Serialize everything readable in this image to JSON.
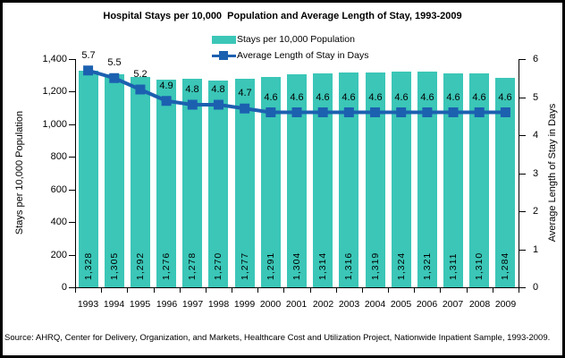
{
  "title": "Hospital Stays per 10,000  Population and Average Length of Stay, 1993-2009",
  "legend": {
    "items": [
      {
        "label": "Stays per 10,000 Population",
        "swatch": "teal-bar-swatch"
      },
      {
        "label": "Average Length of Stay in Days",
        "swatch": "blue-line-marker-swatch"
      }
    ]
  },
  "source": "Source: AHRQ, Center for Delivery, Organization, and Markets, Healthcare Cost and Utilization Project, Nationwide Inpatient Sample, 1993-2009.",
  "colors": {
    "bar": "#3BC6B7",
    "line": "#1C60B0",
    "text": "#000000",
    "background": "#FFFFFF",
    "border": "#000000"
  },
  "chart_data": {
    "type": "bar",
    "subtype": "combo bar + line, dual axis",
    "title": "Hospital Stays per 10,000  Population and Average Length of Stay, 1993-2009",
    "categories": [
      "1993",
      "1994",
      "1995",
      "1996",
      "1997",
      "1998",
      "1999",
      "2000",
      "2001",
      "2002",
      "2003",
      "2004",
      "2005",
      "2006",
      "2007",
      "2008",
      "2009"
    ],
    "series": [
      {
        "name": "Stays per 10,000 Population",
        "type": "bar",
        "axis": "left",
        "values": [
          1328,
          1305,
          1292,
          1276,
          1278,
          1270,
          1277,
          1291,
          1304,
          1314,
          1316,
          1319,
          1324,
          1321,
          1311,
          1310,
          1284
        ],
        "value_labels": [
          "1,328",
          "1,305",
          "1,292",
          "1,276",
          "1,278",
          "1,270",
          "1,277",
          "1,291",
          "1,304",
          "1,314",
          "1,316",
          "1,319",
          "1,324",
          "1,321",
          "1,311",
          "1,310",
          "1,284"
        ]
      },
      {
        "name": "Average Length of Stay in Days",
        "type": "line",
        "axis": "right",
        "values": [
          5.7,
          5.5,
          5.2,
          4.9,
          4.8,
          4.8,
          4.7,
          4.6,
          4.6,
          4.6,
          4.6,
          4.6,
          4.6,
          4.6,
          4.6,
          4.6,
          4.6
        ],
        "value_labels": [
          "5.7",
          "5.5",
          "5.2",
          "4.9",
          "4.8",
          "4.8",
          "4.7",
          "4.6",
          "4.6",
          "4.6",
          "4.6",
          "4.6",
          "4.6",
          "4.6",
          "4.6",
          "4.6",
          "4.6"
        ]
      }
    ],
    "left_axis": {
      "title": "Stays per 10,000 Population",
      "min": 0,
      "max": 1400,
      "tick_step": 200,
      "tick_labels": [
        "0",
        "200",
        "400",
        "600",
        "800",
        "1,000",
        "1,200",
        "1,400"
      ]
    },
    "right_axis": {
      "title": "Average Length of Stay in Days",
      "min": 0,
      "max": 6,
      "tick_step": 1,
      "tick_labels": [
        "0",
        "1",
        "2",
        "3",
        "4",
        "5",
        "6"
      ]
    },
    "grid": false,
    "legend_position": "top-center"
  }
}
